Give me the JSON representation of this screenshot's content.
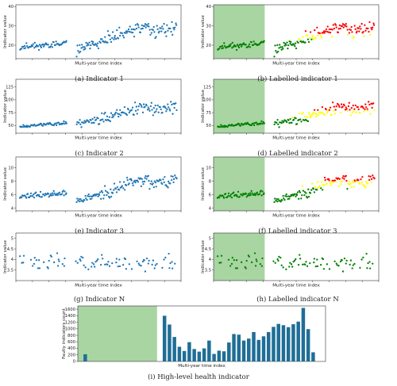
{
  "figure": {
    "captions": [
      "(a) Indicator 1",
      "(b) Labelled indicator 1",
      "(c) Indicator 2",
      "(d) Labelled indicator 2",
      "(e) Indicator 3",
      "(f) Labelled indicator 3",
      "(g) Indicator N",
      "(h) Labelled indicator N",
      "(i) High-level health indicator"
    ],
    "colors": {
      "point": "#1f77b4",
      "normal": "#008000",
      "warning": "#ffff00",
      "alarm": "#ff0000",
      "healthy_region": "#a8d5a2",
      "bar": "#1f6e96"
    }
  },
  "chart_data": [
    {
      "id": "a",
      "type": "scatter",
      "caption": "(a) Indicator 1",
      "xlabel": "Multi-year time index",
      "ylabel": "Indicator value",
      "ylim": [
        13,
        41
      ],
      "yticks": [
        20,
        30,
        40
      ],
      "segments": [
        {
          "start": 0,
          "end": 60,
          "base": 19,
          "slope": 2,
          "noise": 1.4
        },
        {
          "start": 72,
          "end": 100,
          "base": 17,
          "slope": 5,
          "noise": 2
        },
        {
          "start": 100,
          "end": 165,
          "base": 21,
          "slope": 10,
          "noise": 2.6
        },
        {
          "start": 165,
          "end": 200,
          "base": 27,
          "slope": 2,
          "noise": 3
        }
      ],
      "labelled": false
    },
    {
      "id": "b",
      "type": "scatter",
      "caption": "(b) Labelled indicator 1",
      "xlabel": "Multi-year time index",
      "ylabel": "Indicator value",
      "ylim": [
        13,
        41
      ],
      "yticks": [
        20,
        30,
        40
      ],
      "healthy_region_end": 60,
      "warning_threshold": 23,
      "alarm_threshold": 26,
      "labelled": true
    },
    {
      "id": "c",
      "type": "scatter",
      "caption": "(c) Indicator 2",
      "xlabel": "Multi-year time index",
      "ylabel": "Indicator value",
      "ylim": [
        35,
        140
      ],
      "yticks": [
        50,
        75,
        100,
        125
      ],
      "segments": [
        {
          "start": 0,
          "end": 60,
          "base": 48,
          "slope": 8,
          "noise": 3
        },
        {
          "start": 72,
          "end": 100,
          "base": 52,
          "slope": 12,
          "noise": 6
        },
        {
          "start": 100,
          "end": 165,
          "base": 60,
          "slope": 30,
          "noise": 10
        },
        {
          "start": 165,
          "end": 200,
          "base": 80,
          "slope": 5,
          "noise": 10
        }
      ],
      "labelled": false
    },
    {
      "id": "d",
      "type": "scatter",
      "caption": "(d) Labelled indicator 2",
      "xlabel": "Multi-year time index",
      "ylabel": "Indicator value",
      "ylim": [
        35,
        140
      ],
      "yticks": [
        50,
        75,
        100,
        125
      ],
      "healthy_region_end": 60,
      "warning_threshold": 65,
      "alarm_threshold": 80,
      "labelled": true
    },
    {
      "id": "e",
      "type": "scatter",
      "caption": "(e) Indicator 3",
      "xlabel": "Multi-year time index",
      "ylabel": "Indicator value",
      "ylim": [
        3.6,
        11.6
      ],
      "yticks": [
        4,
        6,
        8,
        10
      ],
      "segments": [
        {
          "start": 0,
          "end": 60,
          "base": 5.8,
          "slope": 0.4,
          "noise": 0.35
        },
        {
          "start": 72,
          "end": 100,
          "base": 5.0,
          "slope": 1.0,
          "noise": 0.4
        },
        {
          "start": 100,
          "end": 165,
          "base": 6.0,
          "slope": 2.6,
          "noise": 0.7
        },
        {
          "start": 165,
          "end": 200,
          "base": 7.6,
          "slope": 0.4,
          "noise": 0.8
        }
      ],
      "labelled": false
    },
    {
      "id": "f",
      "type": "scatter",
      "caption": "(f) Labelled indicator 3",
      "xlabel": "Multi-year time index",
      "ylabel": "Indicator value",
      "ylim": [
        3.6,
        11.6
      ],
      "yticks": [
        4,
        6,
        8,
        10
      ],
      "healthy_region_end": 60,
      "warning_threshold": 7.0,
      "alarm_threshold": 8.0,
      "labelled": true
    },
    {
      "id": "g",
      "type": "scatter",
      "caption": "(g) Indicator N",
      "xlabel": "Multi-year time index",
      "ylabel": "Indicator value",
      "ylim": [
        3.0,
        5.25
      ],
      "yticks": [
        3.5,
        4.0,
        4.5,
        5.0
      ],
      "segments": [
        {
          "start": 0,
          "end": 60,
          "base": 3.9,
          "slope": 0,
          "noise": 0.3
        },
        {
          "start": 70,
          "end": 200,
          "base": 3.85,
          "slope": 0,
          "noise": 0.3
        }
      ],
      "density": 0.45,
      "labelled": false
    },
    {
      "id": "h",
      "type": "scatter",
      "caption": "(h) Labelled indicator N",
      "xlabel": "Multi-year time index",
      "ylabel": "Indicator value",
      "ylim": [
        3.0,
        5.25
      ],
      "yticks": [
        3.5,
        4.0,
        4.5,
        5.0
      ],
      "healthy_region_end": 60,
      "warning_threshold": 4.6,
      "alarm_threshold": 5.4,
      "labelled": true
    },
    {
      "id": "i",
      "type": "bar",
      "caption": "(i) High-level health indicator",
      "xlabel": "Multi-year time index",
      "ylabel": "Faulty indicators count",
      "ylim": [
        0,
        1700
      ],
      "yticks": [
        0,
        200,
        400,
        600,
        800,
        1000,
        1200,
        1400,
        1600
      ],
      "xlim": [
        0,
        50
      ],
      "healthy_region_end": 16,
      "x": [
        1.5,
        17.5,
        18.5,
        19.5,
        20.5,
        21.5,
        22.5,
        23.5,
        24.5,
        25.5,
        26.5,
        27.5,
        28.5,
        29.5,
        30.5,
        31.5,
        32.5,
        33.5,
        34.5,
        35.5,
        36.5,
        37.5,
        38.5,
        39.5,
        40.5,
        41.5,
        42.5,
        43.5,
        44.5,
        45.5,
        46.5,
        47.5
      ],
      "values": [
        220,
        1400,
        1130,
        750,
        450,
        320,
        590,
        380,
        300,
        400,
        640,
        230,
        330,
        310,
        580,
        840,
        820,
        640,
        700,
        900,
        660,
        770,
        900,
        1060,
        1150,
        1110,
        1050,
        1140,
        1220,
        1640,
        990,
        280
      ]
    }
  ]
}
